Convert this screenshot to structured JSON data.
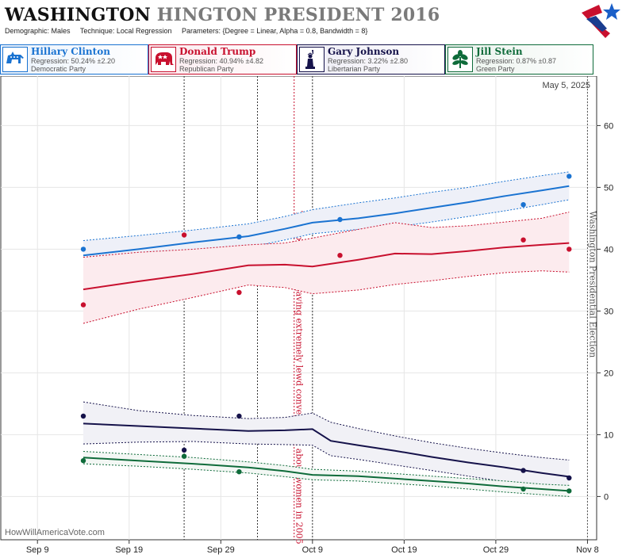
{
  "header": {
    "title_main": "WASHINGTON",
    "title_sub": "HINGTON PRESIDENT 2016",
    "demographic": "Demographic: Males",
    "technique": "Technique: Local Regression",
    "parameters": "Parameters: {Degree = Linear, Alpha = 0.8, Bandwidth = 8}"
  },
  "candidates": [
    {
      "name": "Hillary Clinton",
      "regression": "Regression: 50.24% ±2.20",
      "party": "Democratic Party",
      "color": "#1a73d1",
      "icon": "donkey-icon"
    },
    {
      "name": "Donald Trump",
      "regression": "Regression: 40.94% ±4.82",
      "party": "Republican Party",
      "color": "#c8102e",
      "icon": "elephant-icon"
    },
    {
      "name": "Gary Johnson",
      "regression": "Regression: 3.22% ±2.80",
      "party": "Libertarian Party",
      "color": "#15124a",
      "icon": "liberty-statue-icon"
    },
    {
      "name": "Jill Stein",
      "regression": "Regression: 0.87% ±0.87",
      "party": "Green Party",
      "color": "#0e6b3a",
      "icon": "plant-icon"
    }
  ],
  "chart_data": {
    "type": "line",
    "date_label": "May 5, 2025",
    "watermark": "HowWillAmericaVote.com",
    "xlim": [
      "2016-09-05",
      "2016-11-09"
    ],
    "ylim": [
      -7,
      68
    ],
    "x_ticks": [
      {
        "date": "2016-09-09",
        "label": "Sep 9"
      },
      {
        "date": "2016-09-19",
        "label": "Sep 19"
      },
      {
        "date": "2016-09-29",
        "label": "Sep 29"
      },
      {
        "date": "2016-10-09",
        "label": "Oct 9"
      },
      {
        "date": "2016-10-19",
        "label": "Oct 19"
      },
      {
        "date": "2016-10-29",
        "label": "Oct 29"
      },
      {
        "date": "2016-11-08",
        "label": "Nov 8"
      }
    ],
    "y_ticks": [
      0,
      10,
      20,
      30,
      40,
      50,
      60
    ],
    "poll_lines": [
      "2016-09-25",
      "2016-10-03",
      "2016-10-09"
    ],
    "events": [
      {
        "date": "2016-10-07",
        "label": "Trump recorded having extremely lewd conversation about women in 2005",
        "color": "#c8102e"
      },
      {
        "date": "2016-11-08",
        "label": "Washington Presidential Election",
        "color": "#555555"
      }
    ],
    "series": [
      {
        "name": "Hillary Clinton",
        "color": "#1a73d1",
        "band": "#eef0f8",
        "x": [
          "2016-09-14",
          "2016-09-20",
          "2016-09-26",
          "2016-10-02",
          "2016-10-06",
          "2016-10-09",
          "2016-10-14",
          "2016-10-18",
          "2016-10-22",
          "2016-10-26",
          "2016-10-30",
          "2016-11-03",
          "2016-11-06"
        ],
        "y": [
          39.0,
          40.0,
          41.1,
          42.1,
          43.3,
          44.3,
          45.0,
          45.8,
          46.7,
          47.6,
          48.6,
          49.5,
          50.2
        ],
        "upper": [
          41.4,
          42.2,
          43.1,
          44.1,
          45.3,
          46.4,
          47.5,
          48.3,
          49.2,
          50.0,
          51.0,
          51.9,
          52.5
        ],
        "lower": [
          36.6,
          37.9,
          39.3,
          40.3,
          41.5,
          42.5,
          43.2,
          43.6,
          44.4,
          45.3,
          46.2,
          47.2,
          48.0
        ],
        "points": [
          [
            "2016-09-14",
            40.0
          ],
          [
            "2016-09-25",
            38.5
          ],
          [
            "2016-10-01",
            42.0
          ],
          [
            "2016-10-12",
            44.8
          ],
          [
            "2016-11-01",
            47.2
          ],
          [
            "2016-11-06",
            51.8
          ]
        ]
      },
      {
        "name": "Donald Trump",
        "color": "#c8102e",
        "band": "#fcebee",
        "x": [
          "2016-09-14",
          "2016-09-20",
          "2016-09-26",
          "2016-10-02",
          "2016-10-06",
          "2016-10-09",
          "2016-10-14",
          "2016-10-18",
          "2016-10-22",
          "2016-10-26",
          "2016-10-30",
          "2016-11-03",
          "2016-11-06"
        ],
        "y": [
          33.5,
          34.8,
          36.0,
          37.4,
          37.5,
          37.2,
          38.3,
          39.3,
          39.2,
          39.7,
          40.3,
          40.7,
          41.0
        ],
        "upper": [
          38.7,
          39.5,
          40.0,
          40.7,
          41.0,
          41.8,
          43.2,
          44.3,
          43.5,
          43.8,
          44.4,
          45.0,
          46.0
        ],
        "lower": [
          28.0,
          30.3,
          32.2,
          34.2,
          33.8,
          32.8,
          33.4,
          34.3,
          34.9,
          35.6,
          36.2,
          36.5,
          36.3
        ],
        "points": [
          [
            "2016-09-14",
            31.0
          ],
          [
            "2016-09-25",
            42.3
          ],
          [
            "2016-10-01",
            33.0
          ],
          [
            "2016-10-12",
            39.0
          ],
          [
            "2016-11-01",
            41.5
          ],
          [
            "2016-11-06",
            40.0
          ]
        ]
      },
      {
        "name": "Gary Johnson",
        "color": "#15124a",
        "band": "#f1f1f6",
        "x": [
          "2016-09-14",
          "2016-09-20",
          "2016-09-26",
          "2016-10-02",
          "2016-10-06",
          "2016-10-09",
          "2016-10-11",
          "2016-10-14",
          "2016-10-18",
          "2016-10-22",
          "2016-10-26",
          "2016-10-30",
          "2016-11-03",
          "2016-11-06"
        ],
        "y": [
          11.8,
          11.4,
          11.0,
          10.6,
          10.7,
          10.9,
          9.0,
          8.3,
          7.4,
          6.4,
          5.5,
          4.7,
          3.8,
          3.2
        ],
        "upper": [
          15.3,
          13.9,
          13.1,
          12.6,
          12.8,
          13.5,
          12.0,
          11.0,
          9.8,
          8.7,
          7.8,
          7.0,
          6.3,
          5.9
        ],
        "lower": [
          8.5,
          8.8,
          8.9,
          8.5,
          8.4,
          8.3,
          6.6,
          6.0,
          5.1,
          4.2,
          3.3,
          2.4,
          1.4,
          0.8
        ],
        "points": [
          [
            "2016-09-14",
            13.0
          ],
          [
            "2016-09-25",
            7.5
          ],
          [
            "2016-10-01",
            13.0
          ],
          [
            "2016-11-01",
            4.2
          ],
          [
            "2016-11-06",
            3.0
          ]
        ]
      },
      {
        "name": "Jill Stein",
        "color": "#0e6b3a",
        "band": "#f3f7f4",
        "x": [
          "2016-09-14",
          "2016-09-20",
          "2016-09-26",
          "2016-10-02",
          "2016-10-06",
          "2016-10-09",
          "2016-10-14",
          "2016-10-18",
          "2016-10-22",
          "2016-10-26",
          "2016-10-30",
          "2016-11-03",
          "2016-11-06"
        ],
        "y": [
          6.3,
          5.8,
          5.3,
          4.7,
          4.1,
          3.5,
          3.3,
          2.9,
          2.5,
          2.1,
          1.6,
          1.2,
          0.9
        ],
        "upper": [
          7.3,
          6.8,
          6.3,
          5.6,
          5.0,
          4.4,
          4.1,
          3.7,
          3.3,
          2.9,
          2.5,
          2.0,
          1.8
        ],
        "lower": [
          5.3,
          4.9,
          4.4,
          3.8,
          3.2,
          2.7,
          2.5,
          2.1,
          1.7,
          1.2,
          0.7,
          0.3,
          0.0
        ],
        "points": [
          [
            "2016-09-14",
            5.8
          ],
          [
            "2016-09-25",
            6.5
          ],
          [
            "2016-10-01",
            4.0
          ],
          [
            "2016-11-01",
            1.2
          ],
          [
            "2016-11-06",
            0.9
          ]
        ]
      }
    ]
  }
}
